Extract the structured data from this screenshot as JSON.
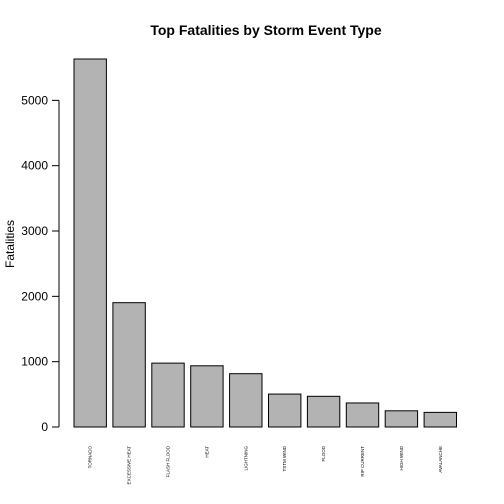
{
  "chart_data": {
    "type": "bar",
    "title": "Top Fatalities by Storm Event Type",
    "xlabel": "",
    "ylabel": "Fatalities",
    "ylim": [
      0,
      5633
    ],
    "yticks": [
      0,
      1000,
      2000,
      3000,
      4000,
      5000
    ],
    "grid": false,
    "categories": [
      "TORNADO",
      "EXCESSIVE HEAT",
      "FLASH FLOOD",
      "HEAT",
      "LIGHTNING",
      "TSTM WIND",
      "FLOOD",
      "RIP CURRENT",
      "HIGH WIND",
      "AVALANCHE"
    ],
    "values": [
      5633,
      1903,
      978,
      937,
      816,
      504,
      470,
      368,
      248,
      224
    ],
    "bar_color": "#b3b3b3"
  }
}
